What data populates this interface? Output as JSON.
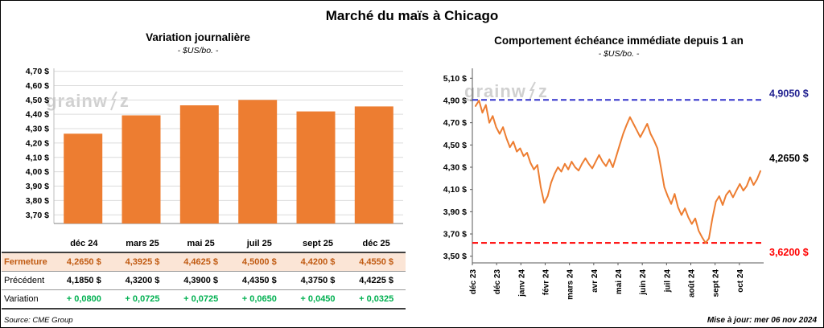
{
  "page": {
    "title": "Marché du maïs à Chicago",
    "source": "Source: CME Group",
    "updated": "Mise à jour: mer 06 nov 2024",
    "watermark_left": "grainw",
    "watermark_right": "z"
  },
  "colors": {
    "bar_orange": "#ED7D31",
    "line_orange": "#ED7D31",
    "max_line_blue": "#3333CC",
    "min_line_red": "#FF0000",
    "fermeture_bg": "#FBE5D6",
    "fermeture_text": "#C05A11",
    "variation_green": "#00B050"
  },
  "left_table": {
    "header": [
      "déc 24",
      "mars 25",
      "mai 25",
      "juil 25",
      "sept 25",
      "déc 25"
    ],
    "rows": [
      {
        "label": "Fermeture",
        "values": [
          "4,2650  $",
          "4,3925  $",
          "4,4625  $",
          "4,5000  $",
          "4,4200  $",
          "4,4550  $"
        ]
      },
      {
        "label": "Précédent",
        "values": [
          "4,1850  $",
          "4,3200  $",
          "4,3900  $",
          "4,4350  $",
          "4,3750  $",
          "4,4225  $"
        ]
      },
      {
        "label": "Variation",
        "values": [
          "+ 0,0800",
          "+ 0,0725",
          "+ 0,0725",
          "+ 0,0650",
          "+ 0,0450",
          "+ 0,0325"
        ]
      }
    ]
  },
  "chart_data": [
    {
      "type": "bar",
      "title": "Variation  journalière",
      "subtitle": "- $US/bo. -",
      "categories": [
        "déc 24",
        "mars 25",
        "mai 25",
        "juil 25",
        "sept 25",
        "déc 25"
      ],
      "values": [
        4.265,
        4.3925,
        4.4625,
        4.5,
        4.42,
        4.455
      ],
      "yticks": [
        3.7,
        3.8,
        3.9,
        4.0,
        4.1,
        4.2,
        4.3,
        4.4,
        4.5,
        4.6,
        4.7
      ],
      "ylim": [
        3.64,
        4.72
      ],
      "grid": true,
      "bar_color": "#ED7D31"
    },
    {
      "type": "line",
      "title": "Comportement  échéance  immédiate  depuis  1  an",
      "subtitle": "- $US/bo. -",
      "x_labels": [
        "déc 23",
        "déc 23",
        "janv 24",
        "févr 24",
        "mars 24",
        "avr 24",
        "mai 24",
        "juin 24",
        "juil 24",
        "août 24",
        "sept 24",
        "oct 24"
      ],
      "yticks": [
        3.5,
        3.7,
        3.9,
        4.1,
        4.3,
        4.5,
        4.7,
        4.9,
        5.1
      ],
      "ylim": [
        3.44,
        5.16
      ],
      "grid": false,
      "line_color": "#ED7D31",
      "max_line": {
        "value": 4.905,
        "label": "4,9050 $",
        "color": "#3333CC",
        "label_color": "#1F1F8F"
      },
      "min_line": {
        "value": 3.62,
        "label": "3,6200 $",
        "color": "#FF0000",
        "label_color": "#FF0000"
      },
      "last_point_label": "4,2650 $",
      "values": [
        4.85,
        4.9,
        4.79,
        4.86,
        4.7,
        4.76,
        4.66,
        4.6,
        4.66,
        4.56,
        4.48,
        4.53,
        4.44,
        4.47,
        4.4,
        4.43,
        4.34,
        4.28,
        4.32,
        4.12,
        3.98,
        4.04,
        4.16,
        4.24,
        4.3,
        4.26,
        4.33,
        4.28,
        4.35,
        4.3,
        4.27,
        4.33,
        4.38,
        4.33,
        4.29,
        4.35,
        4.41,
        4.35,
        4.31,
        4.37,
        4.3,
        4.4,
        4.5,
        4.6,
        4.68,
        4.75,
        4.69,
        4.63,
        4.57,
        4.63,
        4.69,
        4.6,
        4.54,
        4.47,
        4.3,
        4.12,
        4.04,
        3.97,
        4.06,
        3.94,
        3.87,
        3.93,
        3.85,
        3.79,
        3.84,
        3.73,
        3.67,
        3.62,
        3.66,
        3.84,
        3.99,
        4.04,
        3.96,
        4.05,
        4.09,
        4.03,
        4.09,
        4.15,
        4.09,
        4.13,
        4.21,
        4.14,
        4.19,
        4.265
      ]
    }
  ]
}
